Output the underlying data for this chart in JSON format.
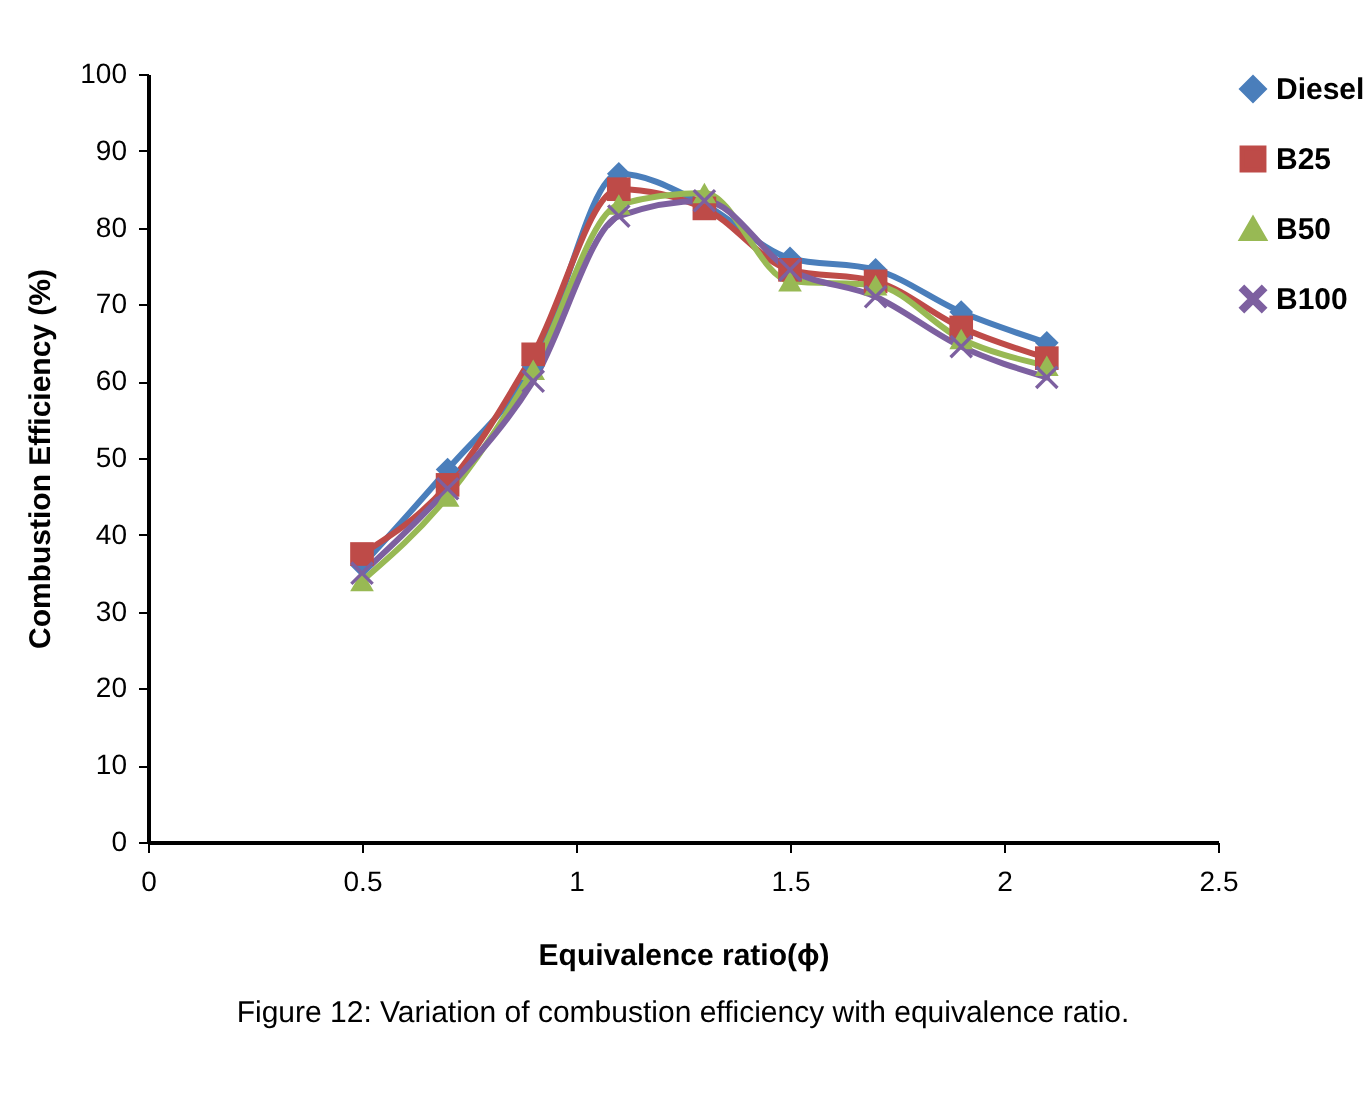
{
  "chart_data": {
    "type": "line",
    "title": "Figure 12: Variation of combustion efficiency with equivalence ratio.",
    "xlabel": "Equivalence ratio(ϕ)",
    "ylabel": "Combustion Efficiency (%)",
    "x": [
      0.5,
      0.7,
      0.9,
      1.1,
      1.3,
      1.5,
      1.7,
      1.9,
      2.1
    ],
    "series": [
      {
        "name": "Diesel",
        "color": "#4a7ebb",
        "marker": "diamond",
        "values": [
          36,
          48.5,
          62,
          87,
          83,
          76,
          74.5,
          69,
          65
        ]
      },
      {
        "name": "B25",
        "color": "#be4b48",
        "marker": "square",
        "values": [
          37.5,
          46.5,
          63.5,
          85,
          82.5,
          74.5,
          73,
          67,
          63
        ]
      },
      {
        "name": "B50",
        "color": "#98b954",
        "marker": "triangle",
        "values": [
          34,
          45,
          61.5,
          83,
          84.5,
          73,
          72.5,
          65.5,
          62
        ]
      },
      {
        "name": "B100",
        "color": "#7d60a0",
        "marker": "cross",
        "values": [
          35,
          46,
          60,
          81.5,
          83.5,
          74.5,
          71,
          64.5,
          60.5
        ]
      }
    ],
    "xlim": [
      0,
      2.5
    ],
    "xticks": [
      0,
      0.5,
      1,
      1.5,
      2,
      2.5
    ],
    "ylim": [
      0,
      100
    ],
    "yticks": [
      0,
      10,
      20,
      30,
      40,
      50,
      60,
      70,
      80,
      90,
      100
    ],
    "grid": false,
    "legend": "right",
    "line_style": "solid"
  }
}
